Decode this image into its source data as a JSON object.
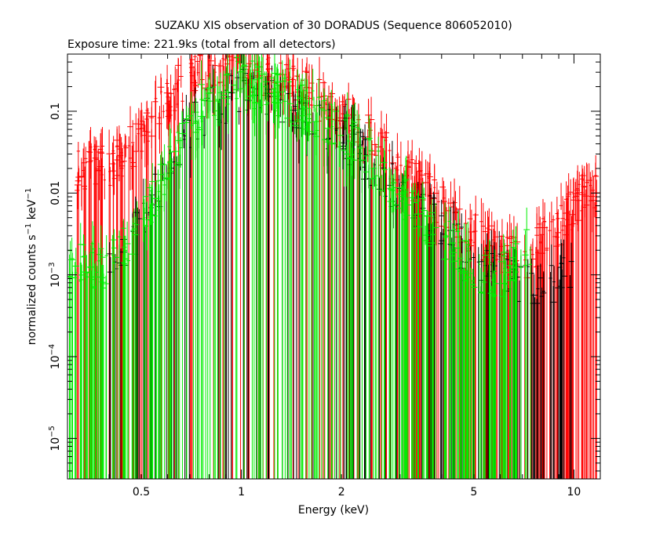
{
  "chart_data": {
    "type": "scatter",
    "title": "SUZAKU XIS observation of 30 DORADUS (Sequence 806052010)",
    "subtitle": "Exposure time: 221.9ks (total from all detectors)",
    "xlabel": "Energy (keV)",
    "ylabel": "normalized counts s",
    "ylabel_sup1": "−1",
    "ylabel_mid": " keV",
    "ylabel_sup2": "−1",
    "xscale": "log",
    "yscale": "log",
    "xlim": [
      0.3,
      12
    ],
    "ylim": [
      3.2e-06,
      0.5
    ],
    "x_ticks": [
      {
        "value": 0.5,
        "label": "0.5"
      },
      {
        "value": 1,
        "label": "1"
      },
      {
        "value": 2,
        "label": "2"
      },
      {
        "value": 5,
        "label": "5"
      },
      {
        "value": 10,
        "label": "10"
      }
    ],
    "y_ticks": [
      {
        "value": 0.1,
        "label": "0.1",
        "base": "",
        "exp": ""
      },
      {
        "value": 0.01,
        "label": "0.01",
        "base": "",
        "exp": ""
      },
      {
        "value": 0.001,
        "label": "",
        "base": "10",
        "exp": "−3"
      },
      {
        "value": 0.0001,
        "label": "",
        "base": "10",
        "exp": "−4"
      },
      {
        "value": 1e-05,
        "label": "",
        "base": "10",
        "exp": "−5"
      }
    ],
    "series": [
      {
        "color": "#ff0000",
        "x": [
          0.32,
          0.38,
          0.45,
          0.55,
          0.65,
          0.75,
          0.85,
          0.95,
          1.0,
          1.1,
          1.3,
          1.6,
          2.0,
          2.5,
          3.0,
          4.0,
          5.0,
          6.0,
          7.0,
          8.0,
          9.0,
          10.0,
          11.0,
          12.0
        ],
        "y": [
          0.02,
          0.02,
          0.03,
          0.09,
          0.2,
          0.3,
          0.35,
          0.38,
          0.4,
          0.3,
          0.25,
          0.16,
          0.1,
          0.045,
          0.02,
          0.007,
          0.003,
          0.0018,
          0.0015,
          0.0025,
          0.004,
          0.007,
          0.01,
          0.012
        ]
      },
      {
        "color": "#000000",
        "x": [
          0.4,
          0.5,
          0.6,
          0.7,
          0.8,
          0.9,
          1.0,
          1.1,
          1.3,
          1.6,
          2.0,
          2.5,
          3.0,
          4.0,
          5.0,
          6.0,
          7.0,
          8.0,
          10.0
        ],
        "y": [
          0.001,
          0.004,
          0.02,
          0.06,
          0.1,
          0.13,
          0.18,
          0.15,
          0.12,
          0.08,
          0.05,
          0.02,
          0.01,
          0.004,
          0.0015,
          0.001,
          0.0008,
          0.0008,
          0.001
        ]
      },
      {
        "color": "#00ee00",
        "x": [
          0.3,
          0.4,
          0.5,
          0.6,
          0.7,
          0.8,
          0.9,
          1.0,
          1.1,
          1.3,
          1.6,
          2.0,
          2.5,
          3.0,
          4.0,
          5.0,
          6.0,
          7.0,
          7.5
        ],
        "y": [
          0.0013,
          0.0013,
          0.004,
          0.02,
          0.08,
          0.15,
          0.2,
          0.3,
          0.2,
          0.16,
          0.1,
          0.06,
          0.025,
          0.01,
          0.003,
          0.0012,
          0.0009,
          0.002,
          0.0025
        ]
      }
    ]
  }
}
